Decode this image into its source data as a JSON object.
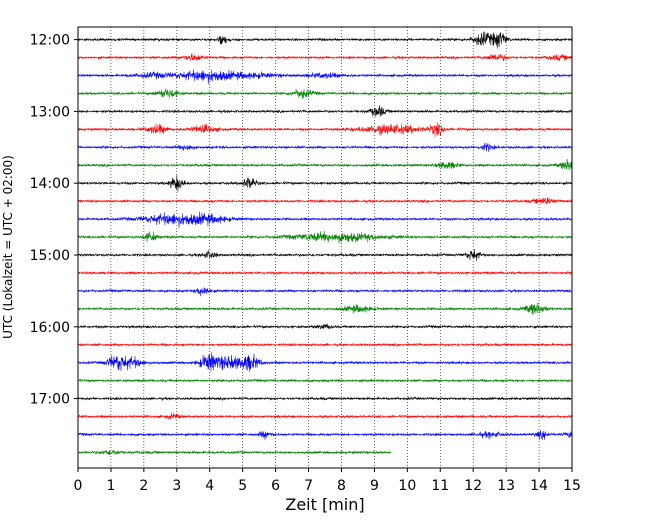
{
  "chart_data": {
    "type": "line",
    "title": "",
    "xlabel": "Zeit  [min]",
    "ylabel": "UTC (Lokalzeit = UTC + 02:00)",
    "xlim": [
      0,
      15
    ],
    "x_ticks": [
      "0",
      "1",
      "2",
      "3",
      "4",
      "5",
      "6",
      "7",
      "8",
      "9",
      "10",
      "11",
      "12",
      "13",
      "14",
      "15"
    ],
    "y_ticks": [
      "12:00",
      "13:00",
      "14:00",
      "15:00",
      "16:00",
      "17:00"
    ],
    "grid": "vertical dotted",
    "colors": [
      "#000000",
      "#ff0000",
      "#0000ff",
      "#008000"
    ],
    "row_interval_minutes": 15,
    "series": [
      {
        "start": "12:00",
        "color": "#000000",
        "end_min": 15,
        "bursts": [
          [
            4.4,
            0.15,
            4
          ],
          [
            12.3,
            0.3,
            6
          ],
          [
            12.8,
            0.2,
            7
          ]
        ]
      },
      {
        "start": "12:15",
        "color": "#ff0000",
        "end_min": 15,
        "bursts": [
          [
            3.5,
            0.3,
            3
          ],
          [
            12.7,
            0.3,
            3
          ],
          [
            14.6,
            0.3,
            2
          ]
        ]
      },
      {
        "start": "12:30",
        "color": "#0000ff",
        "end_min": 15,
        "bursts": [
          [
            2.3,
            0.6,
            2
          ],
          [
            3.9,
            0.8,
            5
          ],
          [
            5.3,
            0.8,
            2
          ],
          [
            7.5,
            0.5,
            2
          ]
        ]
      },
      {
        "start": "12:45",
        "color": "#008000",
        "end_min": 15,
        "bursts": [
          [
            2.7,
            0.3,
            4
          ],
          [
            6.8,
            0.3,
            4
          ]
        ]
      },
      {
        "start": "13:00",
        "color": "#000000",
        "end_min": 15,
        "bursts": [
          [
            9.1,
            0.2,
            5
          ]
        ]
      },
      {
        "start": "13:15",
        "color": "#ff0000",
        "end_min": 15,
        "bursts": [
          [
            2.4,
            0.3,
            4
          ],
          [
            3.8,
            0.4,
            3
          ],
          [
            9.5,
            0.9,
            4
          ],
          [
            10.9,
            0.2,
            5
          ]
        ]
      },
      {
        "start": "13:30",
        "color": "#0000ff",
        "end_min": 15,
        "bursts": [
          [
            3.3,
            0.2,
            3
          ],
          [
            12.4,
            0.2,
            3
          ]
        ]
      },
      {
        "start": "13:45",
        "color": "#008000",
        "end_min": 15,
        "bursts": [
          [
            11.2,
            0.3,
            3
          ],
          [
            15.0,
            0.3,
            6
          ]
        ]
      },
      {
        "start": "14:00",
        "color": "#000000",
        "end_min": 15,
        "bursts": [
          [
            3.0,
            0.2,
            6
          ],
          [
            5.2,
            0.2,
            5
          ]
        ]
      },
      {
        "start": "14:15",
        "color": "#ff0000",
        "end_min": 15,
        "bursts": [
          [
            14.2,
            0.3,
            3
          ]
        ]
      },
      {
        "start": "14:30",
        "color": "#0000ff",
        "end_min": 15,
        "bursts": [
          [
            2.9,
            0.9,
            5
          ],
          [
            4.0,
            0.6,
            3
          ]
        ]
      },
      {
        "start": "14:45",
        "color": "#008000",
        "end_min": 15,
        "bursts": [
          [
            2.2,
            0.2,
            4
          ],
          [
            7.9,
            1.3,
            4
          ]
        ]
      },
      {
        "start": "15:00",
        "color": "#000000",
        "end_min": 15,
        "bursts": [
          [
            4.0,
            0.2,
            3
          ],
          [
            12.0,
            0.2,
            5
          ]
        ]
      },
      {
        "start": "15:15",
        "color": "#ff0000",
        "end_min": 15,
        "bursts": []
      },
      {
        "start": "15:30",
        "color": "#0000ff",
        "end_min": 15,
        "bursts": [
          [
            3.8,
            0.2,
            4
          ]
        ]
      },
      {
        "start": "15:45",
        "color": "#008000",
        "end_min": 15,
        "bursts": [
          [
            8.5,
            0.4,
            3
          ],
          [
            13.9,
            0.3,
            5
          ]
        ]
      },
      {
        "start": "16:00",
        "color": "#000000",
        "end_min": 15,
        "bursts": [
          [
            7.5,
            0.2,
            2
          ]
        ]
      },
      {
        "start": "16:15",
        "color": "#ff0000",
        "end_min": 15,
        "bursts": []
      },
      {
        "start": "16:30",
        "color": "#0000ff",
        "end_min": 15,
        "bursts": [
          [
            1.2,
            0.3,
            7
          ],
          [
            1.7,
            0.3,
            4
          ],
          [
            4.0,
            0.3,
            8
          ],
          [
            4.6,
            0.3,
            6
          ],
          [
            5.2,
            0.3,
            7
          ]
        ]
      },
      {
        "start": "16:45",
        "color": "#008000",
        "end_min": 15,
        "bursts": []
      },
      {
        "start": "17:00",
        "color": "#000000",
        "end_min": 15,
        "bursts": []
      },
      {
        "start": "17:15",
        "color": "#ff0000",
        "end_min": 15,
        "bursts": [
          [
            2.9,
            0.2,
            2
          ]
        ]
      },
      {
        "start": "17:30",
        "color": "#0000ff",
        "end_min": 15,
        "bursts": [
          [
            5.7,
            0.2,
            3
          ],
          [
            12.5,
            0.4,
            2
          ],
          [
            14.1,
            0.2,
            3
          ],
          [
            15.0,
            0.2,
            3
          ]
        ]
      },
      {
        "start": "17:45",
        "color": "#008000",
        "end_min": 9.5,
        "bursts": [
          [
            1.0,
            0.3,
            2
          ]
        ]
      }
    ]
  }
}
